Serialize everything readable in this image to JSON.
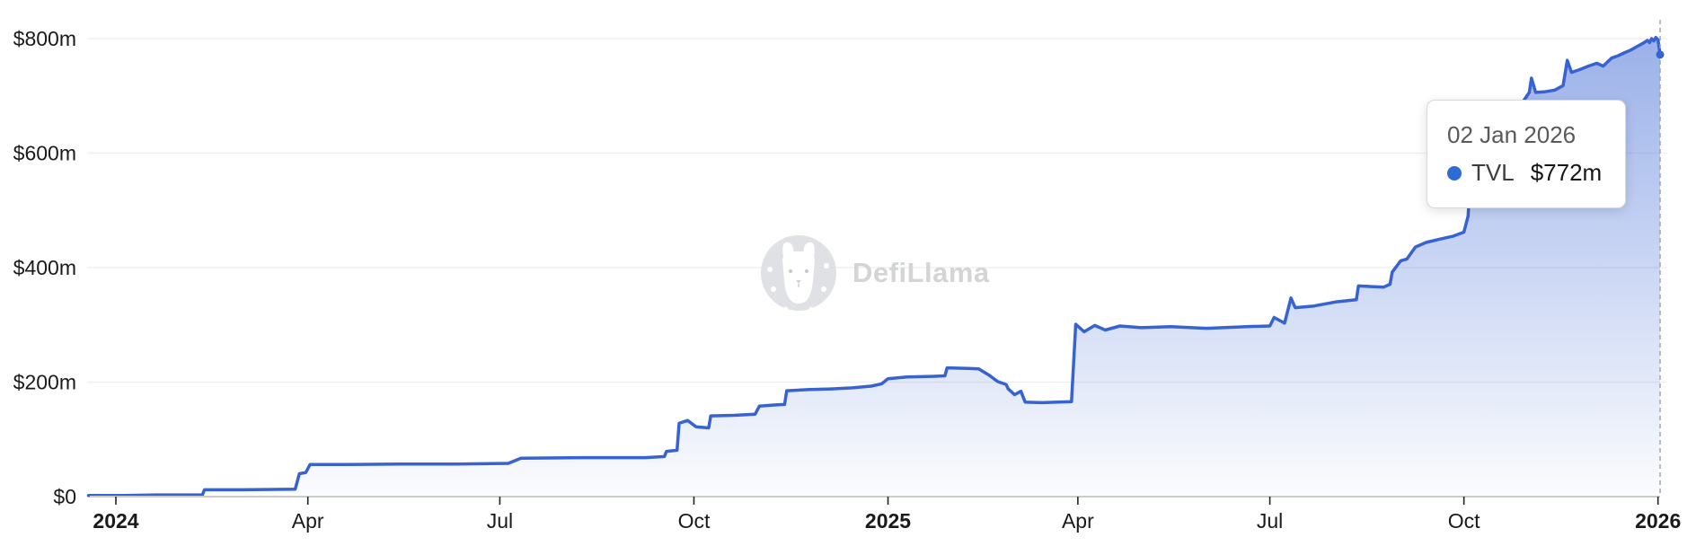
{
  "watermark": {
    "text": "DefiLlama"
  },
  "tooltip": {
    "date": "02 Jan 2026",
    "series": "TVL",
    "value": "$772m"
  },
  "colors": {
    "line": "#3662d2",
    "dot": "#2f6bd4",
    "area_top": "rgba(62,105,213,0.52)",
    "area_bottom": "rgba(62,105,213,0.02)",
    "grid": "#f0f0f0",
    "axis": "#cccccc",
    "tick": "#222222",
    "axis_label": "#1a1a1a",
    "pointer": "#9aa0a6",
    "watermark_gray": "#d9dadc"
  },
  "chart_data": {
    "type": "area",
    "title": "DefiLlama TVL over time",
    "xlabel": "",
    "ylabel": "TVL",
    "ylim": [
      0,
      800
    ],
    "x_range": [
      "2023-12-19",
      "2026-01-02"
    ],
    "grid": "horizontal",
    "legend_position": "none",
    "y_ticks": [
      {
        "label": "$0",
        "value": 0
      },
      {
        "label": "$200m",
        "value": 200
      },
      {
        "label": "$400m",
        "value": 400
      },
      {
        "label": "$600m",
        "value": 600
      },
      {
        "label": "$800m",
        "value": 800
      }
    ],
    "x_ticks": [
      {
        "label": "2024",
        "date": "2024-01-01",
        "bold": true
      },
      {
        "label": "Apr",
        "date": "2024-04-01",
        "bold": false
      },
      {
        "label": "Jul",
        "date": "2024-07-01",
        "bold": false
      },
      {
        "label": "Oct",
        "date": "2024-10-01",
        "bold": false
      },
      {
        "label": "2025",
        "date": "2025-01-01",
        "bold": true
      },
      {
        "label": "Apr",
        "date": "2025-04-01",
        "bold": false
      },
      {
        "label": "Jul",
        "date": "2025-07-01",
        "bold": false
      },
      {
        "label": "Oct",
        "date": "2025-10-01",
        "bold": false
      },
      {
        "label": "2026",
        "date": "2026-01-01",
        "bold": true
      }
    ],
    "series": [
      {
        "name": "TVL",
        "unit": "$m",
        "hover_point": {
          "date": "2026-01-02",
          "value": 772
        },
        "points": [
          [
            "2023-12-19",
            2
          ],
          [
            "2024-01-05",
            2
          ],
          [
            "2024-01-20",
            3
          ],
          [
            "2024-02-11",
            3
          ],
          [
            "2024-02-12",
            12
          ],
          [
            "2024-03-01",
            12
          ],
          [
            "2024-03-26",
            13
          ],
          [
            "2024-03-28",
            40
          ],
          [
            "2024-03-31",
            42
          ],
          [
            "2024-04-02",
            56
          ],
          [
            "2024-04-20",
            56
          ],
          [
            "2024-05-15",
            57
          ],
          [
            "2024-06-10",
            57
          ],
          [
            "2024-07-05",
            58
          ],
          [
            "2024-07-11",
            67
          ],
          [
            "2024-08-10",
            68
          ],
          [
            "2024-09-08",
            68
          ],
          [
            "2024-09-17",
            70
          ],
          [
            "2024-09-18",
            79
          ],
          [
            "2024-09-23",
            81
          ],
          [
            "2024-09-24",
            128
          ],
          [
            "2024-09-28",
            133
          ],
          [
            "2024-10-02",
            122
          ],
          [
            "2024-10-08",
            120
          ],
          [
            "2024-10-09",
            141
          ],
          [
            "2024-10-20",
            142
          ],
          [
            "2024-10-30",
            144
          ],
          [
            "2024-11-01",
            158
          ],
          [
            "2024-11-08",
            160
          ],
          [
            "2024-11-13",
            161
          ],
          [
            "2024-11-14",
            185
          ],
          [
            "2024-11-25",
            187
          ],
          [
            "2024-12-05",
            188
          ],
          [
            "2024-12-15",
            190
          ],
          [
            "2024-12-24",
            193
          ],
          [
            "2024-12-29",
            197
          ],
          [
            "2025-01-01",
            206
          ],
          [
            "2025-01-10",
            209
          ],
          [
            "2025-01-22",
            210
          ],
          [
            "2025-01-28",
            211
          ],
          [
            "2025-01-29",
            225
          ],
          [
            "2025-02-08",
            224
          ],
          [
            "2025-02-13",
            223
          ],
          [
            "2025-02-18",
            212
          ],
          [
            "2025-02-22",
            201
          ],
          [
            "2025-02-26",
            196
          ],
          [
            "2025-02-27",
            188
          ],
          [
            "2025-03-02",
            178
          ],
          [
            "2025-03-05",
            184
          ],
          [
            "2025-03-07",
            165
          ],
          [
            "2025-03-15",
            164
          ],
          [
            "2025-03-29",
            166
          ],
          [
            "2025-03-31",
            301
          ],
          [
            "2025-04-04",
            288
          ],
          [
            "2025-04-09",
            299
          ],
          [
            "2025-04-14",
            291
          ],
          [
            "2025-04-21",
            298
          ],
          [
            "2025-05-01",
            295
          ],
          [
            "2025-05-15",
            297
          ],
          [
            "2025-06-01",
            294
          ],
          [
            "2025-06-20",
            297
          ],
          [
            "2025-07-01",
            298
          ],
          [
            "2025-07-03",
            313
          ],
          [
            "2025-07-08",
            303
          ],
          [
            "2025-07-11",
            347
          ],
          [
            "2025-07-13",
            330
          ],
          [
            "2025-07-22",
            333
          ],
          [
            "2025-08-01",
            340
          ],
          [
            "2025-08-11",
            344
          ],
          [
            "2025-08-12",
            368
          ],
          [
            "2025-08-24",
            366
          ],
          [
            "2025-08-27",
            371
          ],
          [
            "2025-08-28",
            392
          ],
          [
            "2025-09-01",
            412
          ],
          [
            "2025-09-04",
            415
          ],
          [
            "2025-09-08",
            436
          ],
          [
            "2025-09-13",
            444
          ],
          [
            "2025-09-20",
            450
          ],
          [
            "2025-09-26",
            455
          ],
          [
            "2025-10-01",
            462
          ],
          [
            "2025-10-03",
            490
          ],
          [
            "2025-10-04",
            558
          ],
          [
            "2025-10-09",
            575
          ],
          [
            "2025-10-16",
            601
          ],
          [
            "2025-10-22",
            640
          ],
          [
            "2025-10-29",
            690
          ],
          [
            "2025-11-01",
            706
          ],
          [
            "2025-11-02",
            731
          ],
          [
            "2025-11-04",
            706
          ],
          [
            "2025-11-08",
            707
          ],
          [
            "2025-11-13",
            710
          ],
          [
            "2025-11-17",
            718
          ],
          [
            "2025-11-19",
            762
          ],
          [
            "2025-11-21",
            741
          ],
          [
            "2025-11-25",
            746
          ],
          [
            "2025-11-29",
            752
          ],
          [
            "2025-12-03",
            757
          ],
          [
            "2025-12-06",
            752
          ],
          [
            "2025-12-10",
            766
          ],
          [
            "2025-12-13",
            770
          ],
          [
            "2025-12-16",
            775
          ],
          [
            "2025-12-19",
            780
          ],
          [
            "2025-12-22",
            786
          ],
          [
            "2025-12-25",
            792
          ],
          [
            "2025-12-27",
            797
          ],
          [
            "2025-12-28",
            793
          ],
          [
            "2025-12-29",
            800
          ],
          [
            "2025-12-30",
            796
          ],
          [
            "2025-12-31",
            802
          ],
          [
            "2026-01-01",
            798
          ],
          [
            "2026-01-02",
            772
          ]
        ]
      }
    ]
  }
}
